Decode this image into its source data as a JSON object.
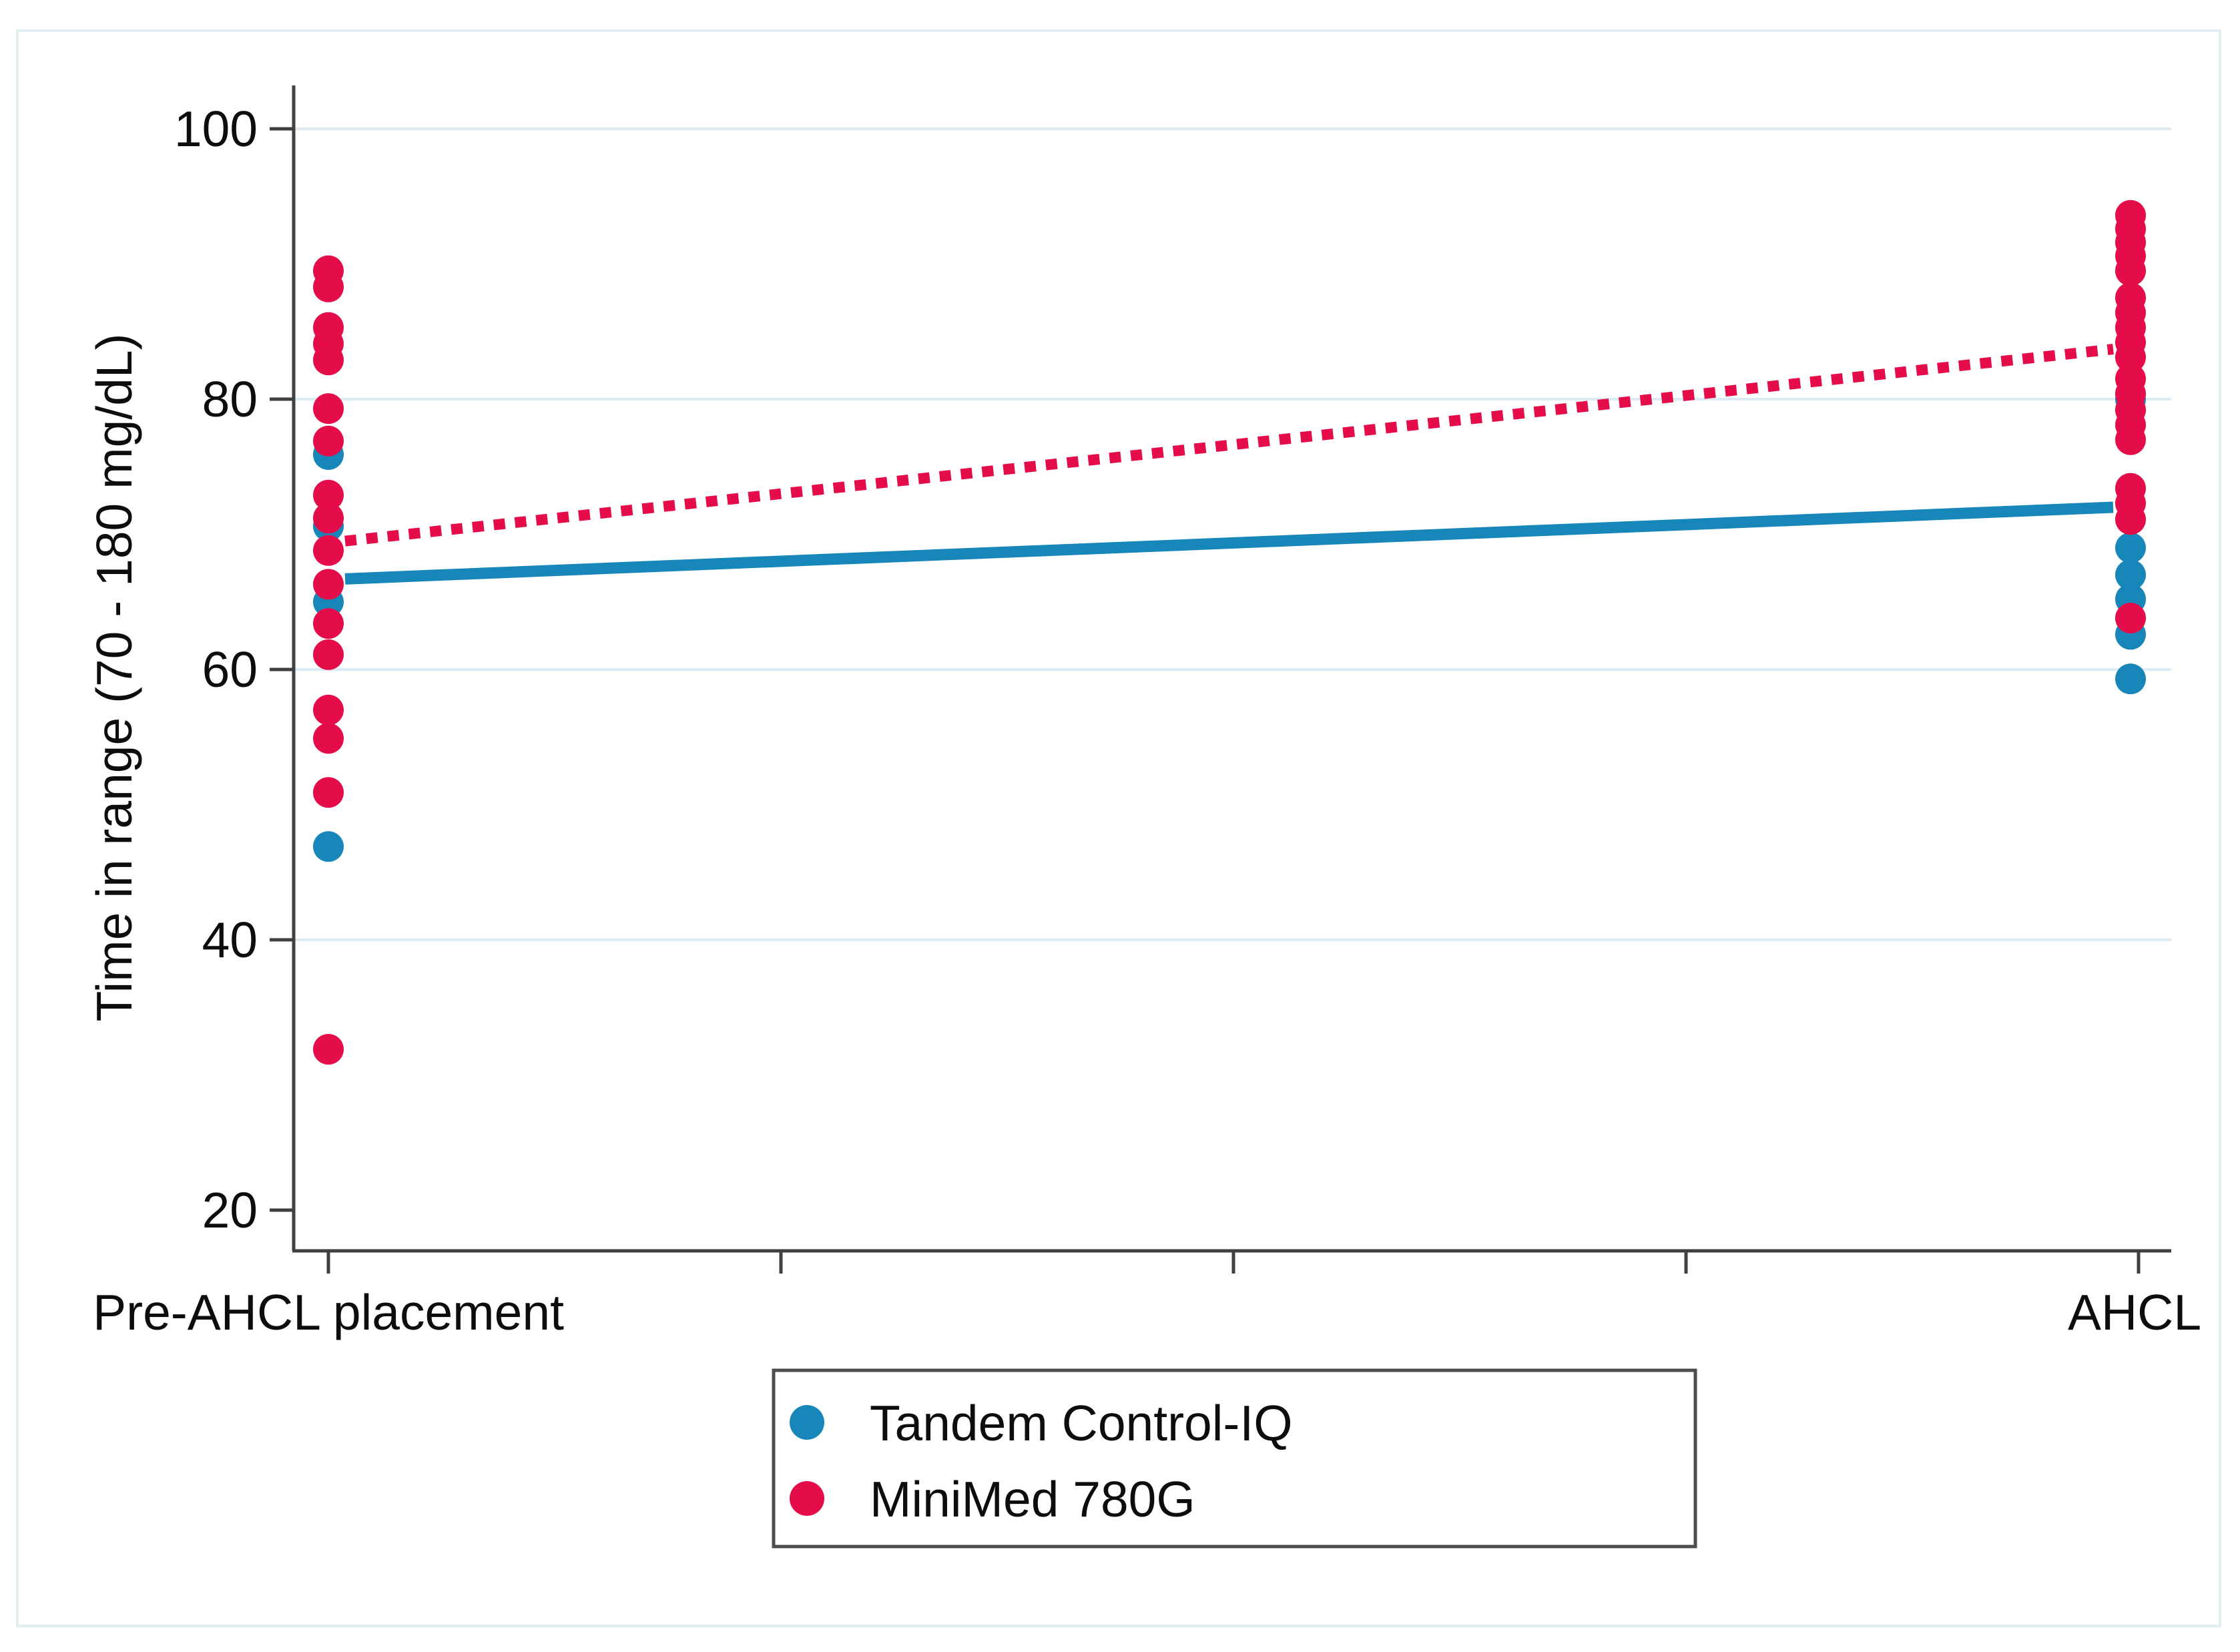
{
  "chart_data": {
    "type": "scatter",
    "title": "",
    "ylabel": "Time in range (70 - 180 mg/dL)",
    "xlabel": "",
    "x_categories": [
      "Pre-AHCL placement",
      "AHCL"
    ],
    "y_ticks": [
      100,
      80,
      60,
      40,
      20
    ],
    "gridline_values": [
      100,
      80,
      60,
      40
    ],
    "ylim": [
      15,
      103
    ],
    "grid": "horizontal",
    "legend_position": "bottom-center",
    "series": [
      {
        "name": "Tandem Control-IQ",
        "color": "#1787b9",
        "marker": "circle",
        "trend_style": "solid",
        "values_pre": [
          75.9,
          70.6,
          65.0,
          46.9
        ],
        "values_ahcl": [
          80.0,
          69.0,
          67.0,
          65.2,
          62.6,
          59.3
        ],
        "trend_pre": 66.7,
        "trend_ahcl": 72.0
      },
      {
        "name": "MiniMed 780G",
        "color": "#e50d49",
        "marker": "circle",
        "trend_style": "dotted",
        "values_pre": [
          89.5,
          88.3,
          85.3,
          84.1,
          82.9,
          79.3,
          76.9,
          72.9,
          71.2,
          68.8,
          66.3,
          63.4,
          61.1,
          57.0,
          54.9,
          50.9,
          31.9
        ],
        "values_ahcl": [
          93.6,
          92.6,
          91.6,
          90.6,
          89.5,
          87.5,
          86.4,
          85.3,
          84.2,
          83.1,
          81.5,
          80.4,
          79.2,
          78.1,
          77.0,
          73.4,
          72.3,
          71.1,
          63.8
        ],
        "trend_pre": 69.5,
        "trend_ahcl": 83.7
      }
    ]
  },
  "colors": {
    "background": "#ffffff",
    "figure_border": "#e3eef1",
    "grid": "#dcebf3",
    "axis": "#404040",
    "text": "#0d0d0d",
    "legend_border": "#4d4d4d",
    "tandem_blue": "#1787b9",
    "minimed_red": "#e50d49"
  }
}
